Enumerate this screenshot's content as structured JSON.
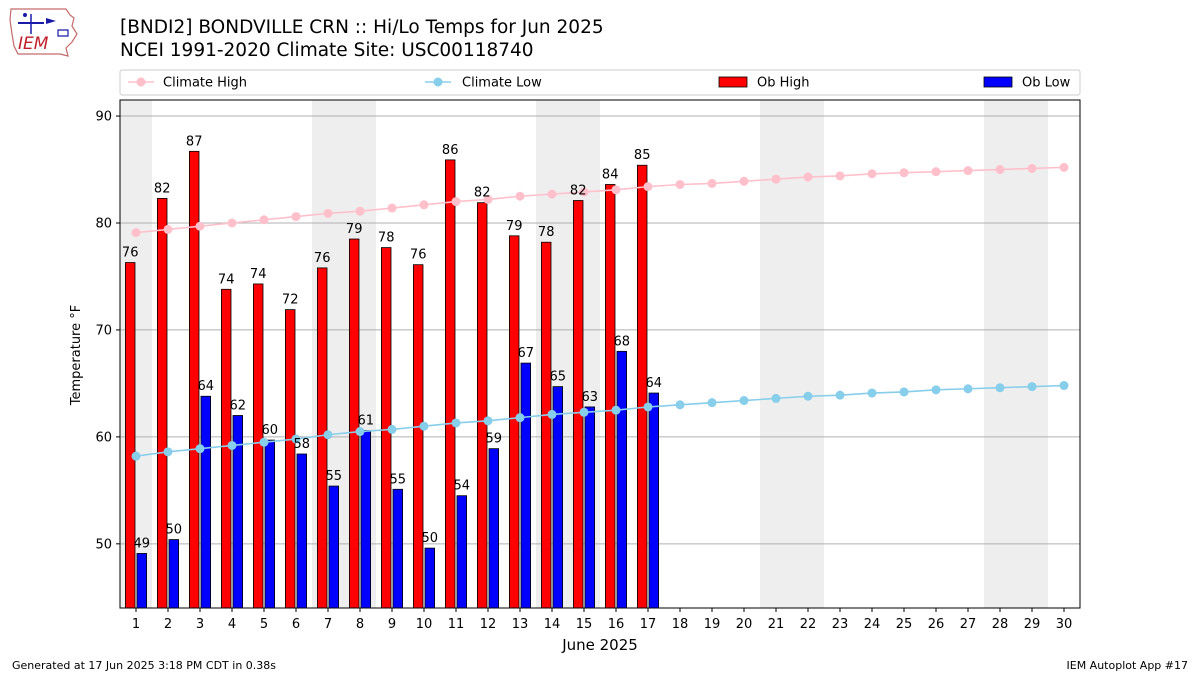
{
  "header": {
    "title_line1": "[BNDI2] BONDVILLE CRN :: Hi/Lo Temps for Jun 2025",
    "title_line2": "NCEI 1991-2020 Climate Site: USC00118740",
    "logo_text": "IEM"
  },
  "footer": {
    "generated": "Generated at 17 Jun 2025 3:18 PM CDT in 0.38s",
    "app": "IEM Autoplot App #17"
  },
  "colors": {
    "climate_high": "#ffc0cb",
    "climate_low": "#87ceeb",
    "ob_high": "#ff0000",
    "ob_low": "#0000ff",
    "weekend_shade": "#eeeeee",
    "grid": "#b0b0b0"
  },
  "chart_data": {
    "type": "bar",
    "xlabel": "June 2025",
    "ylabel": "Temperature °F",
    "ylim": [
      44,
      91.5
    ],
    "yticks": [
      50,
      60,
      70,
      80,
      90
    ],
    "days": [
      1,
      2,
      3,
      4,
      5,
      6,
      7,
      8,
      9,
      10,
      11,
      12,
      13,
      14,
      15,
      16,
      17,
      18,
      19,
      20,
      21,
      22,
      23,
      24,
      25,
      26,
      27,
      28,
      29,
      30
    ],
    "weekend_days": [
      1,
      7,
      8,
      14,
      15,
      21,
      22,
      28,
      29
    ],
    "legend_position": "top (above plot, horizontal)",
    "legend": [
      "Climate High",
      "Climate Low",
      "Ob High",
      "Ob Low"
    ],
    "grid": "horizontal",
    "series": [
      {
        "name": "Climate High",
        "kind": "line",
        "values": [
          79.1,
          79.4,
          79.7,
          80.0,
          80.3,
          80.6,
          80.9,
          81.1,
          81.4,
          81.7,
          82.0,
          82.2,
          82.5,
          82.7,
          82.9,
          83.1,
          83.4,
          83.6,
          83.7,
          83.9,
          84.1,
          84.3,
          84.4,
          84.6,
          84.7,
          84.8,
          84.9,
          85.0,
          85.1,
          85.2
        ]
      },
      {
        "name": "Climate Low",
        "kind": "line",
        "values": [
          58.2,
          58.6,
          58.9,
          59.2,
          59.5,
          59.8,
          60.2,
          60.5,
          60.7,
          61.0,
          61.3,
          61.5,
          61.8,
          62.1,
          62.3,
          62.5,
          62.8,
          63.0,
          63.2,
          63.4,
          63.6,
          63.8,
          63.9,
          64.1,
          64.2,
          64.4,
          64.5,
          64.6,
          64.7,
          64.8
        ]
      },
      {
        "name": "Ob High",
        "kind": "bar",
        "values": [
          76.3,
          82.3,
          86.7,
          73.8,
          74.3,
          71.9,
          75.8,
          78.5,
          77.7,
          76.1,
          85.9,
          81.9,
          78.8,
          78.2,
          82.1,
          83.6,
          85.4
        ],
        "labels": [
          "76",
          "82",
          "87",
          "74",
          "74",
          "72",
          "76",
          "79",
          "78",
          "76",
          "86",
          "82",
          "79",
          "78",
          "82",
          "84",
          "85"
        ]
      },
      {
        "name": "Ob Low",
        "kind": "bar",
        "values": [
          49.1,
          50.4,
          63.8,
          62.0,
          59.7,
          58.4,
          55.4,
          60.6,
          55.1,
          49.6,
          54.5,
          58.9,
          66.9,
          64.7,
          62.8,
          68.0,
          64.1
        ],
        "labels": [
          "49",
          "50",
          "64",
          "62",
          "60",
          "58",
          "55",
          "61",
          "55",
          "50",
          "54",
          "59",
          "67",
          "65",
          "63",
          "68",
          "64"
        ]
      }
    ]
  }
}
